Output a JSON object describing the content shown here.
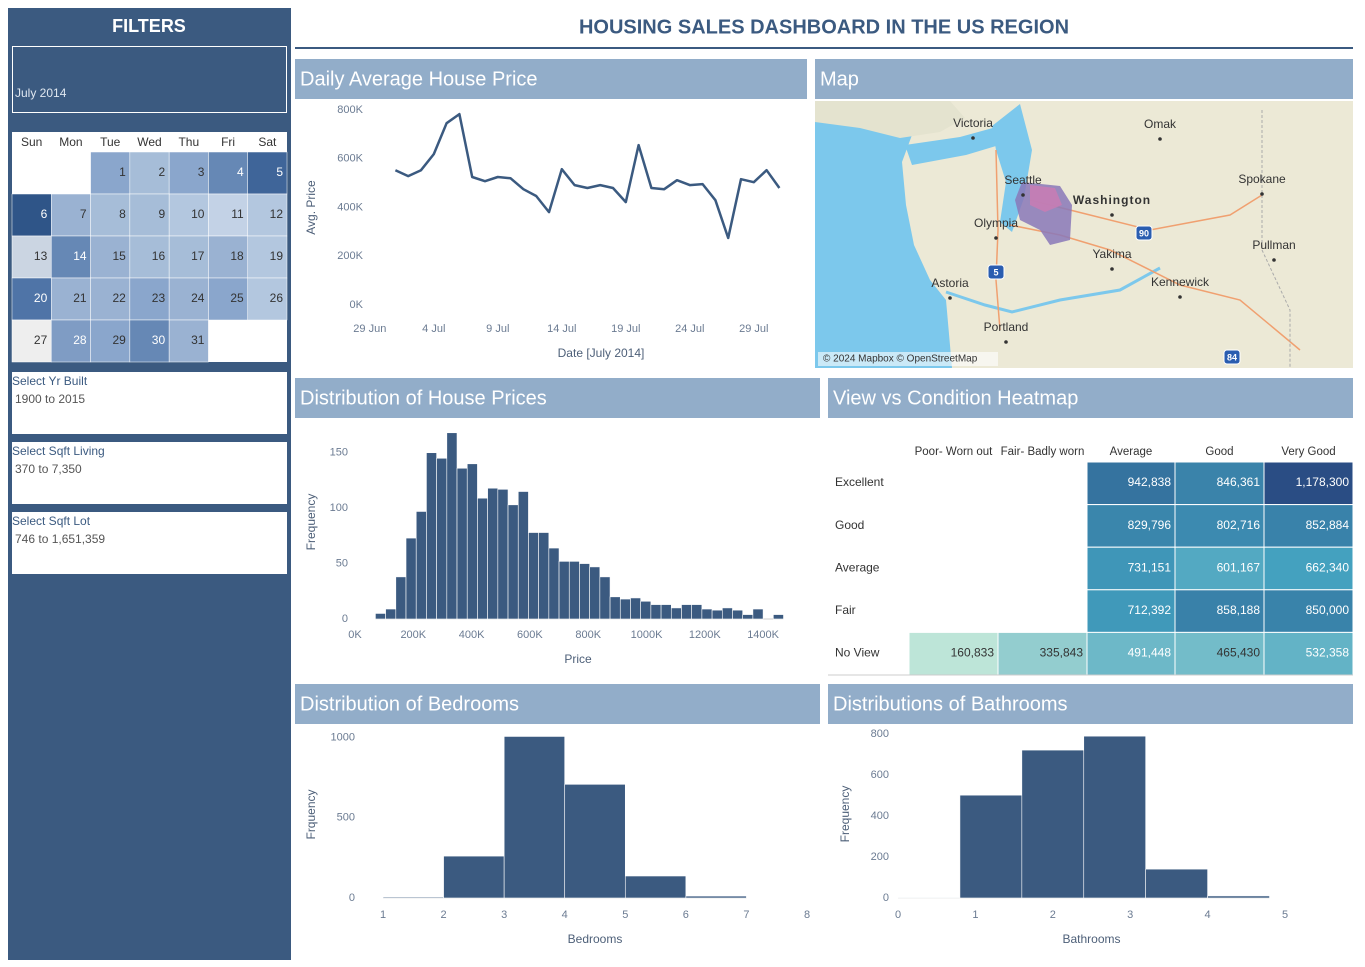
{
  "title": "HOUSING SALES DASHBOARD IN THE US REGION",
  "filters": {
    "title": "FILTERS",
    "month": "July 2014",
    "calendar": {
      "weekdays": [
        "Sun",
        "Mon",
        "Tue",
        "Wed",
        "Thu",
        "Fri",
        "Sat"
      ],
      "days": [
        {
          "day": 1,
          "color": "#8aa6cc"
        },
        {
          "day": 2,
          "color": "#a6bdd8"
        },
        {
          "day": 3,
          "color": "#8aa6cc"
        },
        {
          "day": 4,
          "color": "#6688b5"
        },
        {
          "day": 5,
          "color": "#3f6599"
        },
        {
          "day": 6,
          "color": "#2f5588"
        },
        {
          "day": 7,
          "color": "#9ab2d2"
        },
        {
          "day": 8,
          "color": "#a6bdd8"
        },
        {
          "day": 9,
          "color": "#a6bdd8"
        },
        {
          "day": 10,
          "color": "#b3c7df"
        },
        {
          "day": 11,
          "color": "#c3d2e6"
        },
        {
          "day": 12,
          "color": "#b3c7df"
        },
        {
          "day": 13,
          "color": "#cbd5e2"
        },
        {
          "day": 14,
          "color": "#6688b5"
        },
        {
          "day": 15,
          "color": "#9ab2d2"
        },
        {
          "day": 16,
          "color": "#a6bdd8"
        },
        {
          "day": 17,
          "color": "#a6bdd8"
        },
        {
          "day": 18,
          "color": "#9ab2d2"
        },
        {
          "day": 19,
          "color": "#b3c7df"
        },
        {
          "day": 20,
          "color": "#4f74a7"
        },
        {
          "day": 21,
          "color": "#9ab2d2"
        },
        {
          "day": 22,
          "color": "#9ab2d2"
        },
        {
          "day": 23,
          "color": "#8aa6cc"
        },
        {
          "day": 24,
          "color": "#9ab2d2"
        },
        {
          "day": 25,
          "color": "#8aa6cc"
        },
        {
          "day": 26,
          "color": "#b3c7df"
        },
        {
          "day": 27,
          "color": "#eeeeee"
        },
        {
          "day": 28,
          "color": "#7f9cc4"
        },
        {
          "day": 29,
          "color": "#8aa6cc"
        },
        {
          "day": 30,
          "color": "#6688b5"
        },
        {
          "day": 31,
          "color": "#9ab2d2"
        }
      ]
    },
    "ranges": [
      {
        "label": "Select Yr Built",
        "value": "1900 to 2015"
      },
      {
        "label": "Select Sqft Living",
        "value": "370 to 7,350"
      },
      {
        "label": "Select Sqft Lot",
        "value": "746 to 1,651,359"
      }
    ]
  },
  "map": {
    "title": "Map",
    "labels": [
      "Victoria",
      "Omak",
      "Seattle",
      "Washington",
      "Spokane",
      "Olympia",
      "Yakima",
      "Pullman",
      "Astoria",
      "Kennewick",
      "Portland"
    ],
    "shields": [
      "90",
      "5",
      "84"
    ],
    "attribution": "© 2024 Mapbox © OpenStreetMap"
  },
  "chart_data": [
    {
      "type": "line",
      "title": "Daily Average House Price",
      "xlabel": "Date [July 2014]",
      "ylabel": "Avg. Price",
      "color": "#3b5a80",
      "x": [
        "2014-07-01",
        "2014-07-02",
        "2014-07-03",
        "2014-07-04",
        "2014-07-05",
        "2014-07-06",
        "2014-07-07",
        "2014-07-08",
        "2014-07-09",
        "2014-07-10",
        "2014-07-11",
        "2014-07-12",
        "2014-07-13",
        "2014-07-14",
        "2014-07-15",
        "2014-07-16",
        "2014-07-17",
        "2014-07-18",
        "2014-07-19",
        "2014-07-20",
        "2014-07-21",
        "2014-07-22",
        "2014-07-23",
        "2014-07-24",
        "2014-07-25",
        "2014-07-26",
        "2014-07-27",
        "2014-07-28",
        "2014-07-29",
        "2014-07-30",
        "2014-07-31"
      ],
      "values": [
        553000,
        529000,
        553000,
        619000,
        746000,
        783000,
        525000,
        508000,
        525000,
        520000,
        475000,
        447000,
        381000,
        557000,
        492000,
        480000,
        492000,
        480000,
        422000,
        656000,
        480000,
        475000,
        512000,
        492000,
        496000,
        430000,
        275000,
        516000,
        504000,
        553000,
        480000
      ],
      "xlim": [
        "2014-06-28",
        "2014-08-02"
      ],
      "xticks": [
        {
          "value": "2014-06-29",
          "label": "29 Jun"
        },
        {
          "value": "2014-07-04",
          "label": "4 Jul"
        },
        {
          "value": "2014-07-09",
          "label": "9 Jul"
        },
        {
          "value": "2014-07-14",
          "label": "14 Jul"
        },
        {
          "value": "2014-07-19",
          "label": "19 Jul"
        },
        {
          "value": "2014-07-24",
          "label": "24 Jul"
        },
        {
          "value": "2014-07-29",
          "label": "29 Jul"
        }
      ],
      "ylim": [
        0,
        800000
      ],
      "yticks": [
        {
          "value": 0,
          "label": "0K"
        },
        {
          "value": 200000,
          "label": "200K"
        },
        {
          "value": 400000,
          "label": "400K"
        },
        {
          "value": 600000,
          "label": "600K"
        },
        {
          "value": 800000,
          "label": "800K"
        }
      ]
    },
    {
      "type": "histogram",
      "title": "Distribution of House Prices",
      "xlabel": "Price",
      "ylabel": "Frequency",
      "color": "#3b5a80",
      "bins": [
        70000,
        105000,
        140000,
        175000,
        210000,
        245000,
        280000,
        315000,
        350000,
        385000,
        420000,
        455000,
        490000,
        525000,
        560000,
        595000,
        630000,
        665000,
        700000,
        735000,
        770000,
        805000,
        840000,
        875000,
        910000,
        945000,
        980000,
        1015000,
        1050000,
        1085000,
        1120000,
        1155000,
        1190000,
        1225000,
        1260000,
        1295000,
        1330000,
        1365000,
        1400000,
        1435000,
        1470000
      ],
      "values": [
        5,
        9,
        38,
        73,
        97,
        150,
        145,
        168,
        136,
        140,
        109,
        118,
        117,
        103,
        115,
        78,
        78,
        64,
        52,
        52,
        50,
        47,
        38,
        20,
        18,
        19,
        16,
        13,
        13,
        10,
        13,
        13,
        9,
        8,
        10,
        8,
        4,
        9,
        0,
        4
      ],
      "xlim": [
        0,
        1530000
      ],
      "xticks": [
        {
          "value": 0,
          "label": "0K"
        },
        {
          "value": 200000,
          "label": "200K"
        },
        {
          "value": 400000,
          "label": "400K"
        },
        {
          "value": 600000,
          "label": "600K"
        },
        {
          "value": 800000,
          "label": "800K"
        },
        {
          "value": 1000000,
          "label": "1000K"
        },
        {
          "value": 1200000,
          "label": "1200K"
        },
        {
          "value": 1400000,
          "label": "1400K"
        }
      ],
      "ylim": [
        0,
        175
      ],
      "yticks": [
        0,
        50,
        100,
        150
      ]
    },
    {
      "type": "heatmap",
      "title": "View vs Condition Heatmap",
      "columns": [
        "Poor- Worn out",
        "Fair- Badly worn",
        "Average",
        "Good",
        "Very Good"
      ],
      "rows": [
        "Excellent",
        "Good",
        "Average",
        "Fair",
        "No View"
      ],
      "values": [
        [
          null,
          null,
          942838,
          846361,
          1178300
        ],
        [
          null,
          null,
          829796,
          802716,
          852884
        ],
        [
          null,
          null,
          731151,
          601167,
          662340
        ],
        [
          null,
          null,
          712392,
          858188,
          850000
        ],
        [
          160833,
          335843,
          491448,
          465430,
          532358
        ]
      ],
      "value_labels": [
        [
          null,
          null,
          "942,838",
          "846,361",
          "1,178,300"
        ],
        [
          null,
          null,
          "829,796",
          "802,716",
          "852,884"
        ],
        [
          null,
          null,
          "731,151",
          "601,167",
          "662,340"
        ],
        [
          null,
          null,
          "712,392",
          "858,188",
          "850,000"
        ],
        [
          "160,833",
          "335,843",
          "491,448",
          "465,430",
          "532,358"
        ]
      ],
      "color_scale": [
        "#bde5d8",
        "#42a0bf",
        "#2a4d84"
      ]
    },
    {
      "type": "histogram",
      "title": "Distribution of Bedrooms",
      "xlabel": "Bedrooms",
      "ylabel": "Frquency",
      "color": "#3b5a80",
      "bins": [
        1,
        2,
        3,
        4,
        5,
        6,
        7
      ],
      "values": [
        6,
        261,
        1006,
        708,
        137,
        12
      ],
      "xlim": [
        1,
        8
      ],
      "xticks": [
        1,
        2,
        3,
        4,
        5,
        6,
        7,
        8
      ],
      "ylim": [
        0,
        1040
      ],
      "yticks": [
        0,
        500,
        1000
      ]
    },
    {
      "type": "histogram",
      "title": "Distributions of Bathrooms",
      "xlabel": "Bathrooms",
      "ylabel": "Frequency",
      "color": "#3b5a80",
      "bins": [
        0,
        0.8,
        1.6,
        2.4,
        3.2,
        4,
        4.8
      ],
      "values": [
        3,
        502,
        722,
        790,
        141,
        10
      ],
      "xlim": [
        0,
        5
      ],
      "xticks": [
        0,
        1,
        2,
        3,
        4,
        5
      ],
      "ylim": [
        0,
        820
      ],
      "yticks": [
        0,
        200,
        400,
        600,
        800
      ]
    }
  ]
}
